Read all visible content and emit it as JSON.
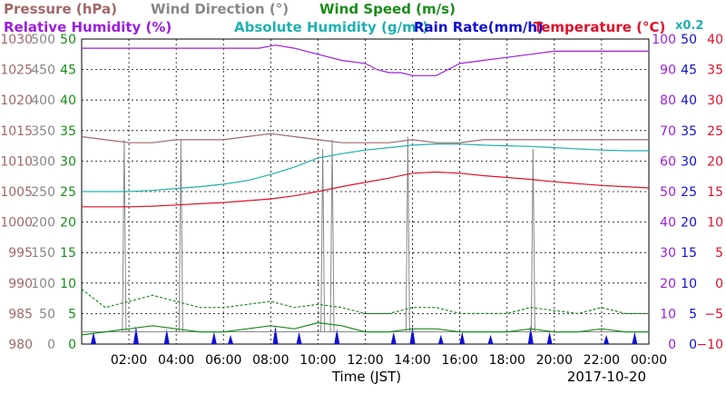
{
  "chart_data": {
    "type": "line",
    "date": "2017-10-20",
    "xlabel": "Time (JST)",
    "x_ticks": [
      "02:00",
      "04:00",
      "06:00",
      "08:00",
      "10:00",
      "12:00",
      "14:00",
      "16:00",
      "18:00",
      "20:00",
      "22:00",
      "00:00"
    ],
    "x_range_hours": [
      0,
      24
    ],
    "grid": true,
    "legend": [
      {
        "text": "Pressure (hPa)",
        "color": "#a06868"
      },
      {
        "text": "Wind Direction (°)",
        "color": "#888888"
      },
      {
        "text": "Wind Speed (m/s)",
        "color": "#1a8c1a"
      },
      {
        "text": "Relative Humidity (%)",
        "color": "#9a1ee0"
      },
      {
        "text": "Absolute Humidity (g/m³)",
        "color": "#20b0b0"
      },
      {
        "text": "Rain Rate(mm/h)",
        "color": "#1010d0"
      },
      {
        "text": "Temperature (°C)",
        "color": "#e0102a"
      }
    ],
    "abs_humidity_multiplier": "x0.2",
    "axes": {
      "pressure": {
        "color": "#a06868",
        "range": [
          980,
          1030
        ],
        "ticks": [
          "1030",
          "1025",
          "1020",
          "1015",
          "1010",
          "1005",
          "1000",
          "995",
          "990",
          "985",
          "980"
        ]
      },
      "wind_direction": {
        "color": "#888888",
        "range": [
          0,
          500
        ],
        "ticks": [
          "500",
          "450",
          "400",
          "350",
          "300",
          "250",
          "200",
          "150",
          "100",
          "50",
          "0"
        ]
      },
      "wind_speed": {
        "color": "#1a8c1a",
        "range": [
          0,
          50
        ],
        "ticks": [
          "50",
          "45",
          "40",
          "35",
          "30",
          "25",
          "20",
          "15",
          "10",
          "5",
          "0"
        ]
      },
      "relative_humidity": {
        "color": "#9a1ee0",
        "range": [
          0,
          100
        ],
        "ticks": [
          "100",
          "90",
          "80",
          "70",
          "60",
          "50",
          "40",
          "30",
          "20",
          "10",
          "0"
        ]
      },
      "rain_rate": {
        "color": "#1010d0",
        "range": [
          0,
          50
        ],
        "ticks": [
          "50",
          "45",
          "40",
          "35",
          "30",
          "25",
          "20",
          "15",
          "10",
          "5",
          "0"
        ]
      },
      "temperature": {
        "color": "#e0102a",
        "range": [
          -10,
          40
        ],
        "ticks": [
          "40",
          "35",
          "30",
          "25",
          "20",
          "15",
          "10",
          "5",
          "0",
          "−5",
          "−10"
        ]
      }
    },
    "series": [
      {
        "name": "Relative Humidity",
        "axis": "relative_humidity",
        "color": "#9a1ee0",
        "x": [
          0,
          2,
          4,
          6,
          7.5,
          8.2,
          9,
          9.5,
          10,
          11,
          12,
          12.5,
          13,
          13.5,
          14,
          15,
          16,
          17,
          18,
          19,
          20,
          21,
          22,
          23,
          24
        ],
        "y": [
          97,
          97,
          97,
          97,
          97,
          98,
          97,
          96,
          95,
          93,
          92,
          90,
          89,
          89,
          88,
          88,
          92,
          93,
          94,
          95,
          96,
          96,
          96,
          96,
          96
        ]
      },
      {
        "name": "Pressure",
        "axis": "pressure",
        "color": "#a06868",
        "x": [
          0,
          1,
          2,
          3,
          4,
          5,
          6,
          7,
          8,
          9,
          10,
          11,
          12,
          13,
          14,
          15,
          16,
          17,
          18,
          19,
          20,
          21,
          22,
          23,
          24
        ],
        "y": [
          1014,
          1013.5,
          1013,
          1013,
          1013.5,
          1013.5,
          1013.5,
          1014,
          1014.5,
          1014,
          1013.5,
          1013,
          1013,
          1013,
          1013.5,
          1013,
          1013,
          1013.5,
          1013.5,
          1013.5,
          1013.5,
          1013.5,
          1013.5,
          1013.5,
          1013.5
        ]
      },
      {
        "name": "Absolute Humidity",
        "axis": "wind_direction",
        "color": "#20b0b0",
        "x": [
          0,
          1,
          2,
          3,
          4,
          5,
          6,
          7,
          8,
          9,
          10,
          11,
          12,
          13,
          14,
          15,
          16,
          17,
          18,
          19,
          20,
          21,
          22,
          23,
          24
        ],
        "y": [
          250,
          250,
          250,
          252,
          255,
          258,
          262,
          268,
          278,
          290,
          305,
          312,
          318,
          322,
          326,
          328,
          328,
          326,
          325,
          324,
          322,
          320,
          318,
          317,
          317
        ]
      },
      {
        "name": "Temperature",
        "axis": "temperature",
        "color": "#e0102a",
        "x": [
          0,
          1,
          2,
          3,
          4,
          5,
          6,
          7,
          8,
          9,
          10,
          11,
          12,
          13,
          14,
          15,
          16,
          17,
          18,
          19,
          20,
          21,
          22,
          23,
          24
        ],
        "y": [
          12.5,
          12.5,
          12.5,
          12.6,
          12.8,
          13,
          13.2,
          13.5,
          13.8,
          14.3,
          15,
          15.8,
          16.5,
          17.2,
          18,
          18.2,
          18,
          17.6,
          17.3,
          17,
          16.6,
          16.3,
          16,
          15.8,
          15.6
        ]
      },
      {
        "name": "Wind Direction",
        "axis": "wind_direction",
        "color": "#888888",
        "spikes_x": [
          1.8,
          4.2,
          10.2,
          10.6,
          13.8,
          19.1
        ],
        "spikes_y": [
          335,
          335,
          320,
          335,
          340,
          320
        ],
        "baseline_y": 20
      },
      {
        "name": "Wind Speed",
        "axis": "wind_speed",
        "color": "#1a8c1a",
        "x": [
          0,
          1,
          2,
          3,
          4,
          5,
          6,
          7,
          8,
          9,
          10,
          11,
          12,
          13,
          14,
          15,
          16,
          17,
          18,
          19,
          20,
          21,
          22,
          23,
          24
        ],
        "y": [
          1.5,
          2,
          2.5,
          3,
          2.5,
          2,
          2,
          2.5,
          3,
          2.5,
          3.5,
          3,
          2,
          2,
          2.5,
          2.5,
          2,
          2,
          2,
          2.5,
          2,
          2,
          2.5,
          2,
          2
        ]
      },
      {
        "name": "Wind Speed Gust",
        "axis": "wind_speed",
        "color": "#1a8c1a",
        "x": [
          0,
          1,
          2,
          3,
          4,
          5,
          6,
          7,
          8,
          9,
          10,
          11,
          12,
          13,
          14,
          15,
          16,
          17,
          18,
          19,
          20,
          21,
          22,
          23,
          24
        ],
        "y": [
          9,
          6,
          7,
          8,
          7,
          6,
          6,
          6.5,
          7,
          6,
          6.5,
          6,
          5,
          5,
          6,
          6,
          5,
          5,
          5,
          6,
          5.5,
          5,
          6,
          5,
          5
        ]
      },
      {
        "name": "Rain Rate",
        "axis": "rain_rate",
        "color": "#1010d0",
        "bursts_x": [
          0.5,
          2.3,
          3.6,
          5.6,
          6.3,
          8.2,
          9.2,
          10.8,
          13.2,
          14,
          15.2,
          16.1,
          17.3,
          19,
          19.8,
          22.2,
          23.4
        ],
        "bursts_y": [
          2,
          3,
          2.5,
          2,
          1.5,
          3,
          2,
          2.5,
          2,
          3,
          1.5,
          2,
          1.5,
          3,
          2,
          1.5,
          2
        ]
      }
    ]
  }
}
